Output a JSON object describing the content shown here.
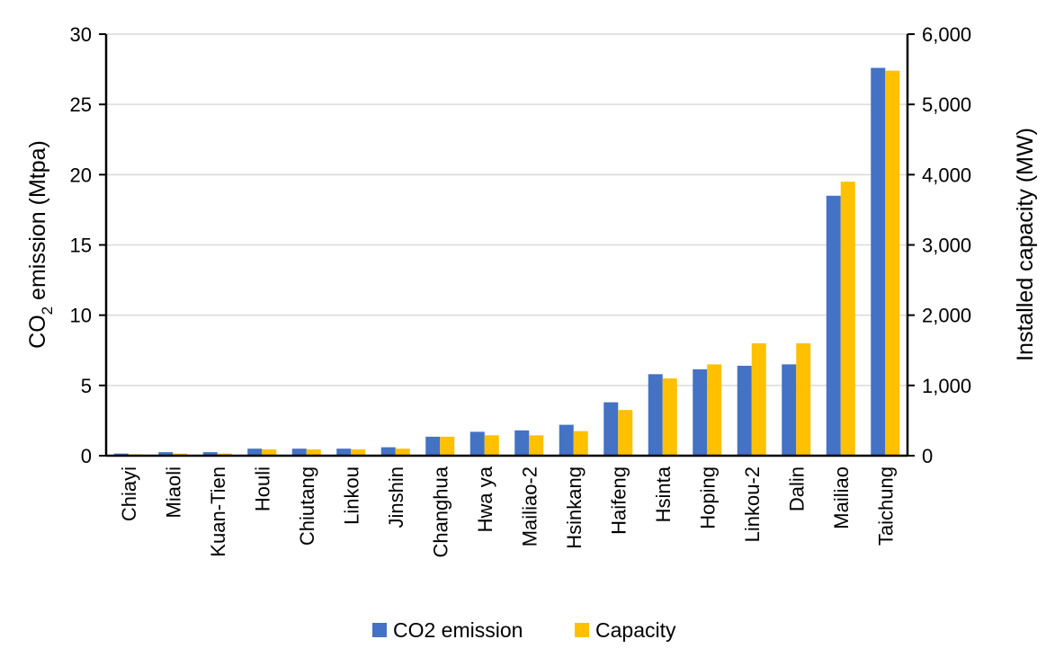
{
  "chart_data": {
    "type": "bar",
    "categories": [
      "Chiayi",
      "Miaoli",
      "Kuan-Tien",
      "Houli",
      "Chiutang",
      "Linkou",
      "Jinshin",
      "Changhua",
      "Hwa ya",
      "Mailiao-2",
      "Hsinkang",
      "Haifeng",
      "Hsinta",
      "Hoping",
      "Linkou-2",
      "Dalin",
      "Mailiao",
      "Taichung"
    ],
    "series": [
      {
        "name": "CO2 emission",
        "axis": "left",
        "color": "#4472C4",
        "values": [
          0.15,
          0.25,
          0.25,
          0.5,
          0.5,
          0.5,
          0.6,
          1.35,
          1.7,
          1.8,
          2.2,
          3.8,
          5.8,
          6.15,
          6.4,
          6.5,
          18.5,
          27.6
        ]
      },
      {
        "name": "Capacity",
        "axis": "right",
        "color": "#FFC000",
        "values": [
          20,
          30,
          30,
          90,
          90,
          90,
          100,
          270,
          290,
          290,
          350,
          650,
          1100,
          1300,
          1600,
          1600,
          3900,
          5480
        ]
      }
    ],
    "ylabel_parts": {
      "main": "CO",
      "sub": "2",
      "rest": " emission (Mtpa)"
    },
    "y2label": "Installed capacity (MW)",
    "ylim": [
      0,
      30
    ],
    "y2lim": [
      0,
      6000
    ],
    "yticks": [
      "0",
      "5",
      "10",
      "15",
      "20",
      "25",
      "30"
    ],
    "y2ticks": [
      "0",
      "1,000",
      "2,000",
      "3,000",
      "4,000",
      "5,000",
      "6,000"
    ],
    "grid": true,
    "legend_position": "bottom"
  }
}
